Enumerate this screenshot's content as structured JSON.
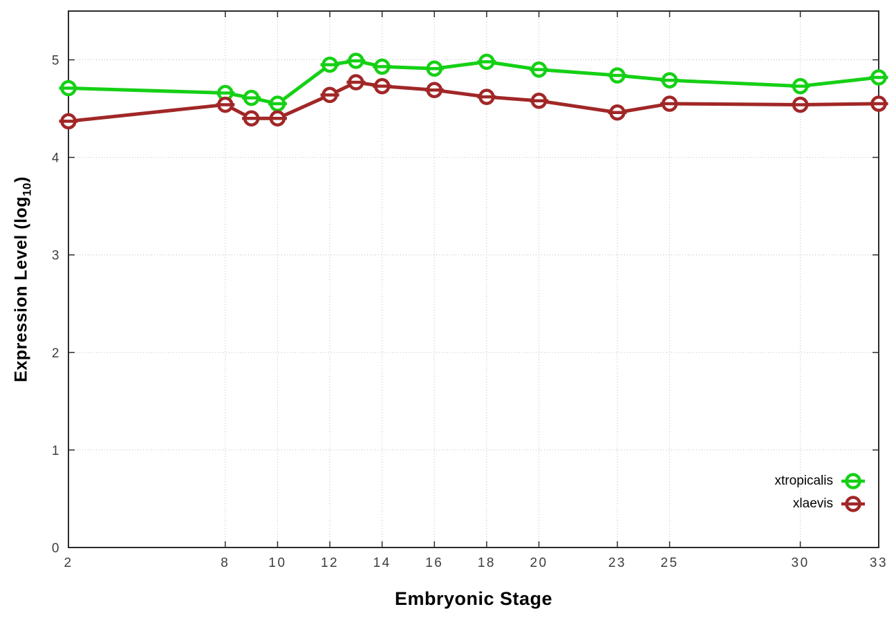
{
  "chart_data": {
    "type": "line",
    "title": "",
    "xlabel": "Embryonic Stage",
    "ylabel": "Expression Level (log10)",
    "ylabel_parts": {
      "prefix": "Expression Level (log",
      "subscript": "10",
      "suffix": ")"
    },
    "x": [
      2,
      8,
      9,
      10,
      12,
      13,
      14,
      16,
      18,
      20,
      23,
      25,
      30,
      33
    ],
    "x_ticks": [
      2,
      8,
      10,
      12,
      14,
      16,
      18,
      20,
      23,
      25,
      30,
      33
    ],
    "x_tick_labels": [
      "2",
      "8",
      "10",
      "12",
      "14",
      "16",
      "18",
      "20",
      "23",
      "25",
      "30",
      "33"
    ],
    "y_ticks": [
      0,
      1,
      2,
      3,
      4,
      5
    ],
    "y_tick_labels": [
      "0",
      "1",
      "2",
      "3",
      "4",
      "5"
    ],
    "xlim": [
      2,
      33
    ],
    "ylim": [
      0,
      5.5
    ],
    "grid": true,
    "legend_position": "inside-bottom-right",
    "marker": "open-circle-with-horizontal-errorbar",
    "series": [
      {
        "name": "xtropicalis",
        "color": "#15d015",
        "values": [
          4.71,
          4.66,
          4.61,
          4.55,
          4.95,
          4.99,
          4.93,
          4.91,
          4.98,
          4.9,
          4.84,
          4.79,
          4.73,
          4.82
        ]
      },
      {
        "name": "xlaevis",
        "color": "#a12727",
        "values": [
          4.37,
          4.54,
          4.4,
          4.4,
          4.64,
          4.77,
          4.73,
          4.69,
          4.62,
          4.58,
          4.46,
          4.55,
          4.54,
          4.55
        ]
      }
    ],
    "axis_color": "#2b2b2b",
    "grid_color": "#bdbdbd",
    "tick_label_color": "#3d3d3d"
  }
}
